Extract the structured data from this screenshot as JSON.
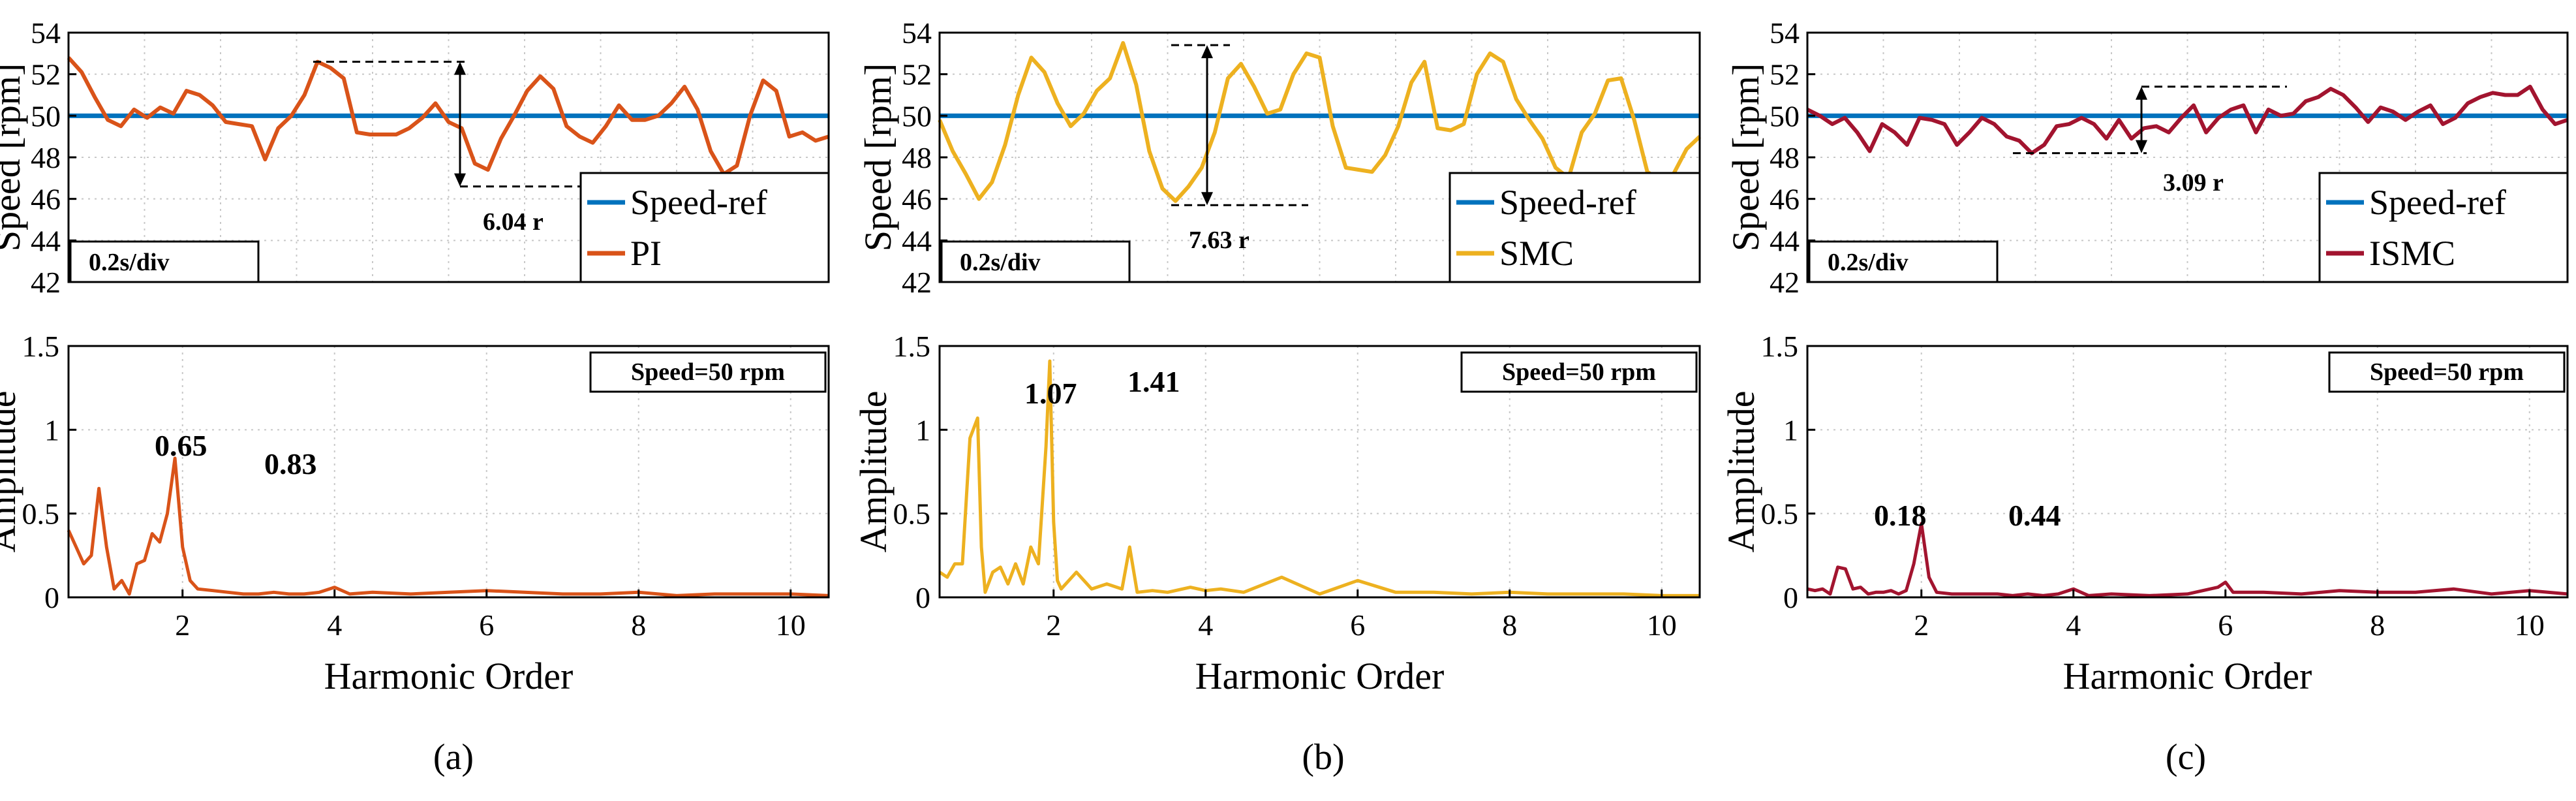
{
  "colors": {
    "ref": "#0072bd",
    "pi": "#d95319",
    "smc": "#edb120",
    "ismc": "#a2142f"
  },
  "chart_data": [
    {
      "type": "line",
      "panel": "a",
      "caption": "(a)",
      "ylabel": "Speed [rpm]",
      "ylim": [
        42,
        54
      ],
      "yticks": [
        42,
        44,
        46,
        48,
        50,
        52,
        54
      ],
      "time_div": "0.2s/div",
      "x_divisions": 10,
      "series": [
        {
          "name": "Speed-ref",
          "color": "#0072bd",
          "values": [
            50,
            50
          ]
        },
        {
          "name": "PI",
          "color": "#d95319",
          "values": [
            52.8,
            52.1,
            50.9,
            49.8,
            49.5,
            50.3,
            49.9,
            50.4,
            50.1,
            51.2,
            51.0,
            50.5,
            49.7,
            49.6,
            49.5,
            47.9,
            49.4,
            50.0,
            51.0,
            52.6,
            52.3,
            51.8,
            49.2,
            49.1,
            49.1,
            49.1,
            49.4,
            49.9,
            50.6,
            49.7,
            49.4,
            47.7,
            47.4,
            48.9,
            50.0,
            51.2,
            51.9,
            51.3,
            49.5,
            49.0,
            48.7,
            49.5,
            50.5,
            49.8,
            49.8,
            50.0,
            50.6,
            51.4,
            50.3,
            48.3,
            47.2,
            47.6,
            50.0,
            51.7,
            51.2,
            49.0,
            49.2,
            48.8,
            49.0
          ]
        }
      ],
      "annotation": {
        "label": "6.04 r",
        "hi": 52.6,
        "lo": 46.6
      }
    },
    {
      "type": "line",
      "panel": "b",
      "caption": "(b)",
      "ylabel": "Speed [rpm]",
      "ylim": [
        42,
        54
      ],
      "yticks": [
        42,
        44,
        46,
        48,
        50,
        52,
        54
      ],
      "time_div": "0.2s/div",
      "x_divisions": 10,
      "series": [
        {
          "name": "Speed-ref",
          "color": "#0072bd",
          "values": [
            50,
            50
          ]
        },
        {
          "name": "SMC",
          "color": "#edb120",
          "values": [
            49.8,
            48.3,
            47.2,
            46.0,
            46.8,
            48.6,
            51.0,
            52.8,
            52.1,
            50.6,
            49.5,
            50.1,
            51.2,
            51.8,
            53.5,
            51.5,
            48.3,
            46.5,
            45.9,
            46.6,
            47.5,
            49.2,
            51.8,
            52.5,
            51.4,
            50.1,
            50.3,
            52.0,
            53.0,
            52.8,
            49.5,
            47.5,
            47.4,
            47.3,
            48.1,
            49.5,
            51.6,
            52.6,
            49.4,
            49.3,
            49.6,
            52.0,
            53.0,
            52.6,
            50.8,
            49.8,
            48.9,
            47.5,
            47.0,
            49.2,
            50.1,
            51.7,
            51.8,
            49.8,
            47.3,
            46.9,
            47.2,
            48.4,
            49.0
          ]
        }
      ],
      "annotation": {
        "label": "7.63 r",
        "hi": 53.4,
        "lo": 45.7
      }
    },
    {
      "type": "line",
      "panel": "c",
      "caption": "(c)",
      "ylabel": "Speed [rpm]",
      "ylim": [
        42,
        54
      ],
      "yticks": [
        42,
        44,
        46,
        48,
        50,
        52,
        54
      ],
      "time_div": "0.2s/div",
      "x_divisions": 10,
      "series": [
        {
          "name": "Speed-ref",
          "color": "#0072bd",
          "values": [
            50,
            50
          ]
        },
        {
          "name": "ISMC",
          "color": "#a2142f",
          "values": [
            50.3,
            50.0,
            49.6,
            49.9,
            49.2,
            48.3,
            49.6,
            49.2,
            48.6,
            49.9,
            49.8,
            49.6,
            48.6,
            49.2,
            49.9,
            49.6,
            49.0,
            48.8,
            48.2,
            48.6,
            49.5,
            49.6,
            49.9,
            49.6,
            48.9,
            49.8,
            48.9,
            49.4,
            49.5,
            49.2,
            49.9,
            50.5,
            49.2,
            49.9,
            50.3,
            50.5,
            49.2,
            50.3,
            50.0,
            50.1,
            50.7,
            50.9,
            51.3,
            51.0,
            50.4,
            49.7,
            50.4,
            50.2,
            49.8,
            50.2,
            50.5,
            49.6,
            49.9,
            50.6,
            50.9,
            51.1,
            51.0,
            51.0,
            51.4,
            50.3,
            49.6,
            49.8
          ]
        }
      ],
      "annotation": {
        "label": "3.09 r",
        "hi": 51.4,
        "lo": 48.2
      }
    },
    {
      "type": "line",
      "panel": "a",
      "xlabel": "Harmonic Order",
      "ylabel": "Amplitude",
      "xlim": [
        0.5,
        10.5
      ],
      "ylim": [
        0,
        1.5
      ],
      "xticks": [
        2,
        4,
        6,
        8,
        10
      ],
      "yticks": [
        0,
        0.5,
        1,
        1.5
      ],
      "ytick_labels": [
        "0",
        "0.5",
        "1",
        "1.5"
      ],
      "note": "Speed=50 rpm",
      "peak_labels": [
        "0.65",
        "0.83"
      ],
      "series": [
        {
          "name": "PI spectrum",
          "color": "#d95319",
          "x": [
            0.5,
            0.6,
            0.7,
            0.8,
            0.9,
            1.0,
            1.1,
            1.2,
            1.3,
            1.4,
            1.5,
            1.6,
            1.7,
            1.8,
            1.9,
            2.0,
            2.1,
            2.2,
            2.4,
            2.6,
            2.8,
            3.0,
            3.2,
            3.4,
            3.6,
            3.8,
            4.0,
            4.2,
            4.5,
            5.0,
            5.5,
            6.0,
            6.5,
            7.0,
            7.5,
            8.0,
            8.5,
            9.0,
            9.5,
            10.0,
            10.5
          ],
          "y": [
            0.4,
            0.3,
            0.2,
            0.25,
            0.65,
            0.3,
            0.05,
            0.1,
            0.02,
            0.2,
            0.22,
            0.38,
            0.33,
            0.5,
            0.83,
            0.3,
            0.1,
            0.05,
            0.04,
            0.03,
            0.02,
            0.02,
            0.03,
            0.02,
            0.02,
            0.03,
            0.06,
            0.02,
            0.03,
            0.02,
            0.03,
            0.04,
            0.03,
            0.02,
            0.02,
            0.03,
            0.01,
            0.02,
            0.02,
            0.02,
            0.01
          ]
        }
      ]
    },
    {
      "type": "line",
      "panel": "b",
      "xlabel": "Harmonic Order",
      "ylabel": "Amplitude",
      "xlim": [
        0.5,
        10.5
      ],
      "ylim": [
        0,
        1.5
      ],
      "xticks": [
        2,
        4,
        6,
        8,
        10
      ],
      "yticks": [
        0,
        0.5,
        1,
        1.5
      ],
      "ytick_labels": [
        "0",
        "0.5",
        "1",
        "1.5"
      ],
      "note": "Speed=50 rpm",
      "peak_labels": [
        "1.07",
        "1.41"
      ],
      "series": [
        {
          "name": "SMC spectrum",
          "color": "#edb120",
          "x": [
            0.5,
            0.6,
            0.7,
            0.8,
            0.9,
            1.0,
            1.05,
            1.1,
            1.2,
            1.3,
            1.4,
            1.5,
            1.6,
            1.7,
            1.8,
            1.9,
            1.95,
            2.0,
            2.05,
            2.1,
            2.3,
            2.5,
            2.7,
            2.9,
            3.0,
            3.1,
            3.3,
            3.5,
            3.8,
            4.0,
            4.2,
            4.5,
            5.0,
            5.5,
            6.0,
            6.5,
            7.0,
            7.5,
            8.0,
            8.5,
            9.0,
            9.5,
            10.0,
            10.5
          ],
          "y": [
            0.15,
            0.12,
            0.2,
            0.2,
            0.95,
            1.07,
            0.3,
            0.03,
            0.15,
            0.18,
            0.08,
            0.2,
            0.08,
            0.3,
            0.2,
            0.9,
            1.41,
            0.45,
            0.1,
            0.05,
            0.15,
            0.05,
            0.08,
            0.05,
            0.3,
            0.03,
            0.04,
            0.03,
            0.06,
            0.04,
            0.05,
            0.03,
            0.12,
            0.02,
            0.1,
            0.03,
            0.03,
            0.02,
            0.03,
            0.02,
            0.02,
            0.02,
            0.01,
            0.01
          ]
        }
      ]
    },
    {
      "type": "line",
      "panel": "c",
      "xlabel": "Harmonic Order",
      "ylabel": "Amplitude",
      "xlim": [
        0.5,
        10.5
      ],
      "ylim": [
        0,
        1.5
      ],
      "xticks": [
        2,
        4,
        6,
        8,
        10
      ],
      "yticks": [
        0,
        0.5,
        1,
        1.5
      ],
      "ytick_labels": [
        "0",
        "0.5",
        "1",
        "1.5"
      ],
      "note": "Speed=50 rpm",
      "peak_labels": [
        "0.18",
        "0.44"
      ],
      "series": [
        {
          "name": "ISMC spectrum",
          "color": "#a2142f",
          "x": [
            0.5,
            0.6,
            0.7,
            0.8,
            0.9,
            1.0,
            1.1,
            1.2,
            1.3,
            1.4,
            1.5,
            1.6,
            1.7,
            1.8,
            1.9,
            2.0,
            2.1,
            2.2,
            2.4,
            2.6,
            2.8,
            3.0,
            3.2,
            3.4,
            3.6,
            3.8,
            4.0,
            4.2,
            4.5,
            5.0,
            5.5,
            5.9,
            6.0,
            6.1,
            6.5,
            7.0,
            7.5,
            8.0,
            8.5,
            9.0,
            9.5,
            10.0,
            10.5
          ],
          "y": [
            0.05,
            0.04,
            0.05,
            0.02,
            0.18,
            0.17,
            0.05,
            0.06,
            0.02,
            0.03,
            0.03,
            0.04,
            0.02,
            0.04,
            0.2,
            0.44,
            0.12,
            0.03,
            0.02,
            0.02,
            0.02,
            0.02,
            0.01,
            0.02,
            0.01,
            0.02,
            0.05,
            0.01,
            0.02,
            0.01,
            0.02,
            0.06,
            0.09,
            0.03,
            0.03,
            0.02,
            0.04,
            0.03,
            0.03,
            0.05,
            0.02,
            0.04,
            0.02
          ]
        }
      ]
    }
  ]
}
